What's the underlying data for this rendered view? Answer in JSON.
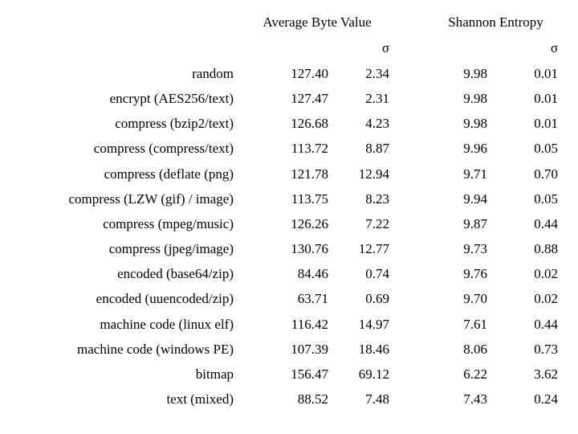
{
  "table": {
    "groups": [
      "Average Byte Value",
      "Shannon Entropy"
    ],
    "sigma": [
      "σ",
      "σ"
    ],
    "rows": [
      [
        "random",
        "127.40",
        "2.34",
        "9.98",
        "0.01"
      ],
      [
        "encrypt (AES256/text)",
        "127.47",
        "2.31",
        "9.98",
        "0.01"
      ],
      [
        "compress (bzip2/text)",
        "126.68",
        "4.23",
        "9.98",
        "0.01"
      ],
      [
        "compress (compress/text)",
        "113.72",
        "8.87",
        "9.96",
        "0.05"
      ],
      [
        "compress (deflate (png)",
        "121.78",
        "12.94",
        "9.71",
        "0.70"
      ],
      [
        "compress (LZW (gif) / image)",
        "113.75",
        "8.23",
        "9.94",
        "0.05"
      ],
      [
        "compress (mpeg/music)",
        "126.26",
        "7.22",
        "9.87",
        "0.44"
      ],
      [
        "compress (jpeg/image)",
        "130.76",
        "12.77",
        "9.73",
        "0.88"
      ],
      [
        "encoded (base64/zip)",
        "84.46",
        "0.74",
        "9.76",
        "0.02"
      ],
      [
        "encoded (uuencoded/zip)",
        "63.71",
        "0.69",
        "9.70",
        "0.02"
      ],
      [
        "machine code (linux elf)",
        "116.42",
        "14.97",
        "7.61",
        "0.44"
      ],
      [
        "machine code (windows PE)",
        "107.39",
        "18.46",
        "8.06",
        "0.73"
      ],
      [
        "bitmap",
        "156.47",
        "69.12",
        "6.22",
        "3.62"
      ],
      [
        "text (mixed)",
        "88.52",
        "7.48",
        "7.43",
        "0.24"
      ]
    ]
  }
}
